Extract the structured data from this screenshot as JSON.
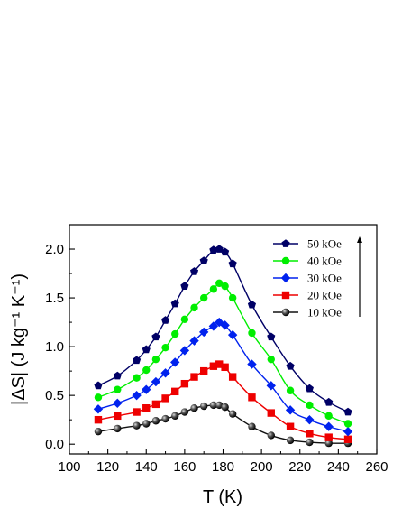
{
  "chart_data": {
    "type": "line",
    "xlabel": "T (K)",
    "ylabel": "|ΔS| (J kg⁻¹ K⁻¹)",
    "xlim": [
      100,
      260
    ],
    "ylim": [
      -0.1,
      2.25
    ],
    "xticks": [
      100,
      120,
      140,
      160,
      180,
      200,
      220,
      240,
      260
    ],
    "yticks": [
      0.0,
      0.5,
      1.0,
      1.5,
      2.0
    ],
    "ytick_labels": [
      "0.0",
      "0.5",
      "1.0",
      "1.5",
      "2.0"
    ],
    "legend_position": "top-right",
    "legend_arrow": "upward",
    "x": [
      115,
      125,
      135,
      140,
      145,
      150,
      155,
      160,
      165,
      170,
      175,
      178,
      181,
      185,
      195,
      205,
      215,
      225,
      235,
      245
    ],
    "series": [
      {
        "name": "50 kOe",
        "color": "#000066",
        "marker": "pentagon",
        "values": [
          0.6,
          0.7,
          0.86,
          0.97,
          1.1,
          1.27,
          1.44,
          1.62,
          1.77,
          1.88,
          1.99,
          2.0,
          1.97,
          1.85,
          1.43,
          1.1,
          0.8,
          0.57,
          0.43,
          0.33
        ]
      },
      {
        "name": "40 kOe",
        "color": "#00ee00",
        "marker": "circle",
        "values": [
          0.48,
          0.56,
          0.68,
          0.76,
          0.87,
          0.99,
          1.13,
          1.28,
          1.4,
          1.5,
          1.59,
          1.65,
          1.62,
          1.5,
          1.14,
          0.87,
          0.55,
          0.4,
          0.29,
          0.21
        ]
      },
      {
        "name": "30 kOe",
        "color": "#0022ee",
        "marker": "diamond",
        "values": [
          0.36,
          0.42,
          0.5,
          0.56,
          0.64,
          0.73,
          0.84,
          0.96,
          1.06,
          1.15,
          1.21,
          1.25,
          1.22,
          1.12,
          0.82,
          0.6,
          0.35,
          0.25,
          0.18,
          0.13
        ]
      },
      {
        "name": "20 kOe",
        "color": "#ee0000",
        "marker": "square",
        "values": [
          0.25,
          0.29,
          0.33,
          0.37,
          0.41,
          0.47,
          0.54,
          0.62,
          0.69,
          0.75,
          0.8,
          0.82,
          0.79,
          0.69,
          0.48,
          0.32,
          0.18,
          0.11,
          0.07,
          0.05
        ]
      },
      {
        "name": "10 kOe",
        "color": "#111111",
        "marker": "sphere",
        "values": [
          0.13,
          0.16,
          0.19,
          0.21,
          0.24,
          0.26,
          0.29,
          0.33,
          0.37,
          0.39,
          0.4,
          0.4,
          0.38,
          0.31,
          0.18,
          0.09,
          0.04,
          0.02,
          0.01,
          0.01
        ]
      }
    ]
  }
}
